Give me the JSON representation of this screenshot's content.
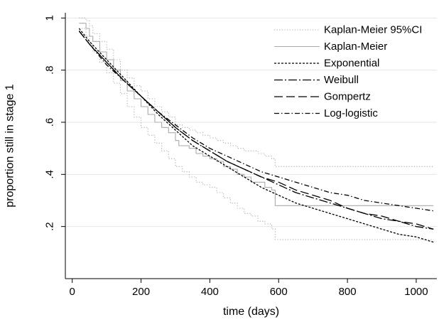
{
  "chart_data": {
    "type": "line",
    "xlabel": "time (days)",
    "ylabel": "proportion still in stage 1",
    "xlim": [
      -20,
      1060
    ],
    "ylim": [
      0.0,
      1.02
    ],
    "x_ticks": [
      0,
      200,
      400,
      600,
      800,
      1000
    ],
    "x_tick_labels": [
      "0",
      "200",
      "400",
      "600",
      "800",
      "1000"
    ],
    "y_ticks": [
      0.2,
      0.4,
      0.6,
      0.8,
      1.0
    ],
    "y_tick_labels": [
      ".2",
      ".4",
      ".6",
      ".8",
      "1"
    ],
    "grid": "horizontal",
    "legend_position": "top-right",
    "series": [
      {
        "name": "Kaplan-Meier 95%CI",
        "style": "dotted",
        "color": "#aaaaaa",
        "lines": [
          {
            "x": [
              20,
              40,
              50,
              60,
              80,
              100,
              120,
              140,
              160,
              180,
              200,
              220,
              240,
              260,
              280,
              300,
              320,
              340,
              360,
              380,
              400,
              420,
              440,
              460,
              480,
              500,
              520,
              540,
              560,
              580,
              590,
              600,
              700,
              800,
              900,
              1000,
              1050
            ],
            "y": [
              1.0,
              0.99,
              0.97,
              0.94,
              0.91,
              0.88,
              0.84,
              0.8,
              0.77,
              0.74,
              0.72,
              0.69,
              0.66,
              0.64,
              0.62,
              0.59,
              0.58,
              0.57,
              0.56,
              0.55,
              0.54,
              0.53,
              0.52,
              0.51,
              0.5,
              0.49,
              0.49,
              0.48,
              0.47,
              0.46,
              0.43,
              0.43,
              0.43,
              0.43,
              0.43,
              0.43,
              0.43
            ]
          },
          {
            "x": [
              20,
              40,
              50,
              60,
              80,
              100,
              120,
              140,
              160,
              180,
              200,
              220,
              240,
              260,
              280,
              300,
              320,
              340,
              360,
              380,
              400,
              420,
              440,
              460,
              480,
              500,
              520,
              540,
              560,
              580,
              590,
              600,
              700,
              800,
              900,
              1000,
              1050
            ],
            "y": [
              0.96,
              0.93,
              0.9,
              0.87,
              0.83,
              0.79,
              0.75,
              0.71,
              0.66,
              0.62,
              0.58,
              0.55,
              0.52,
              0.49,
              0.46,
              0.43,
              0.41,
              0.39,
              0.37,
              0.36,
              0.35,
              0.33,
              0.31,
              0.29,
              0.27,
              0.25,
              0.24,
              0.22,
              0.21,
              0.19,
              0.15,
              0.15,
              0.15,
              0.15,
              0.15,
              0.15,
              0.15
            ]
          }
        ]
      },
      {
        "name": "Kaplan-Meier",
        "style": "solid",
        "color": "#aaaaaa",
        "x": [
          20,
          40,
          50,
          60,
          80,
          100,
          120,
          140,
          160,
          180,
          200,
          220,
          240,
          260,
          280,
          300,
          310,
          320,
          340,
          360,
          380,
          400,
          420,
          440,
          460,
          480,
          500,
          520,
          540,
          560,
          580,
          590,
          600,
          700,
          800,
          900,
          1000,
          1050
        ],
        "y": [
          0.98,
          0.96,
          0.93,
          0.91,
          0.87,
          0.84,
          0.8,
          0.76,
          0.72,
          0.69,
          0.66,
          0.63,
          0.6,
          0.58,
          0.56,
          0.53,
          0.51,
          0.51,
          0.5,
          0.48,
          0.47,
          0.46,
          0.45,
          0.43,
          0.42,
          0.4,
          0.39,
          0.37,
          0.37,
          0.35,
          0.34,
          0.28,
          0.28,
          0.28,
          0.28,
          0.28,
          0.28,
          0.28
        ]
      },
      {
        "name": "Exponential",
        "style": "short-dash",
        "color": "#000000",
        "x": [
          20,
          50,
          100,
          150,
          200,
          250,
          300,
          350,
          400,
          450,
          500,
          550,
          600,
          650,
          700,
          750,
          800,
          850,
          900,
          950,
          1000,
          1050
        ],
        "y": [
          0.96,
          0.91,
          0.84,
          0.77,
          0.7,
          0.63,
          0.57,
          0.51,
          0.47,
          0.43,
          0.39,
          0.35,
          0.32,
          0.29,
          0.27,
          0.25,
          0.23,
          0.21,
          0.19,
          0.17,
          0.16,
          0.14
        ]
      },
      {
        "name": "Weibull",
        "style": "long-dash-dot",
        "color": "#000000",
        "x": [
          20,
          50,
          100,
          150,
          200,
          250,
          300,
          350,
          400,
          450,
          500,
          550,
          600,
          650,
          700,
          750,
          800,
          850,
          900,
          950,
          1000,
          1050
        ],
        "y": [
          0.95,
          0.9,
          0.83,
          0.76,
          0.7,
          0.64,
          0.58,
          0.53,
          0.49,
          0.45,
          0.42,
          0.39,
          0.36,
          0.33,
          0.31,
          0.29,
          0.27,
          0.25,
          0.23,
          0.22,
          0.2,
          0.19
        ]
      },
      {
        "name": "Gompertz",
        "style": "long-dash",
        "color": "#000000",
        "x": [
          20,
          50,
          100,
          150,
          200,
          250,
          300,
          350,
          400,
          450,
          500,
          550,
          600,
          650,
          700,
          750,
          800,
          850,
          900,
          950,
          1000,
          1050
        ],
        "y": [
          0.95,
          0.9,
          0.83,
          0.76,
          0.7,
          0.64,
          0.58,
          0.53,
          0.49,
          0.45,
          0.42,
          0.39,
          0.37,
          0.34,
          0.32,
          0.3,
          0.27,
          0.25,
          0.24,
          0.22,
          0.21,
          0.19
        ]
      },
      {
        "name": "Log-logistic",
        "style": "dash-dot",
        "color": "#000000",
        "x": [
          20,
          50,
          100,
          150,
          200,
          250,
          300,
          350,
          400,
          450,
          500,
          550,
          600,
          650,
          700,
          750,
          800,
          850,
          900,
          950,
          1000,
          1050
        ],
        "y": [
          0.95,
          0.9,
          0.82,
          0.76,
          0.7,
          0.64,
          0.59,
          0.54,
          0.5,
          0.47,
          0.44,
          0.41,
          0.39,
          0.37,
          0.35,
          0.33,
          0.32,
          0.3,
          0.29,
          0.28,
          0.27,
          0.26
        ]
      }
    ]
  }
}
